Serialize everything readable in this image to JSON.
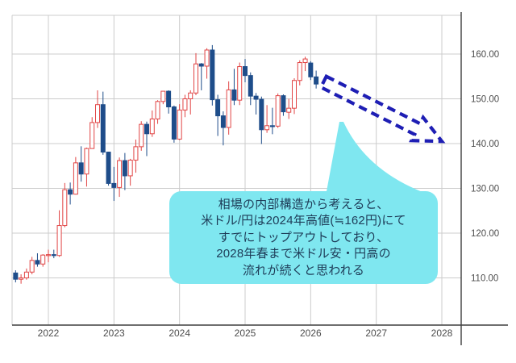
{
  "chart_data": {
    "type": "candlestick",
    "timeframe": "monthly",
    "x_axis": {
      "tick_labels": [
        "2022",
        "2023",
        "2024",
        "2025",
        "2026",
        "2027",
        "2028"
      ],
      "grid": true
    },
    "y_axis": {
      "tick_labels": [
        "160.00",
        "150.00",
        "140.00",
        "130.00",
        "120.00",
        "110.00"
      ],
      "side": "right",
      "grid": true
    },
    "candle_columns": [
      "month",
      "open",
      "high",
      "low",
      "close"
    ],
    "candles": [
      [
        "2021-07",
        111.1,
        111.7,
        109.0,
        109.7
      ],
      [
        "2021-08",
        109.7,
        110.8,
        108.7,
        110.0
      ],
      [
        "2021-09",
        110.0,
        112.1,
        109.6,
        111.3
      ],
      [
        "2021-10",
        111.3,
        114.7,
        110.8,
        113.9
      ],
      [
        "2021-11",
        113.9,
        115.5,
        112.5,
        113.1
      ],
      [
        "2021-12",
        113.1,
        115.3,
        112.5,
        115.1
      ],
      [
        "2022-01",
        115.1,
        116.3,
        113.5,
        115.2
      ],
      [
        "2022-02",
        115.2,
        116.3,
        114.4,
        115.0
      ],
      [
        "2022-03",
        115.0,
        125.1,
        114.7,
        121.7
      ],
      [
        "2022-04",
        121.7,
        131.2,
        121.3,
        129.7
      ],
      [
        "2022-05",
        129.7,
        131.3,
        126.4,
        128.7
      ],
      [
        "2022-06",
        128.7,
        137.0,
        128.6,
        135.7
      ],
      [
        "2022-07",
        135.7,
        139.4,
        131.5,
        133.2
      ],
      [
        "2022-08",
        133.2,
        139.1,
        130.4,
        138.9
      ],
      [
        "2022-09",
        138.9,
        145.9,
        138.9,
        144.7
      ],
      [
        "2022-10",
        144.7,
        151.9,
        143.5,
        148.7
      ],
      [
        "2022-11",
        148.7,
        151.6,
        137.5,
        138.1
      ],
      [
        "2022-12",
        138.1,
        138.2,
        130.6,
        131.1
      ],
      [
        "2023-01",
        131.1,
        134.8,
        127.2,
        130.2
      ],
      [
        "2023-02",
        130.2,
        136.9,
        128.1,
        136.2
      ],
      [
        "2023-03",
        136.2,
        137.9,
        129.6,
        132.8
      ],
      [
        "2023-04",
        132.8,
        136.6,
        130.6,
        136.3
      ],
      [
        "2023-05",
        136.3,
        140.9,
        133.5,
        139.3
      ],
      [
        "2023-06",
        139.3,
        145.0,
        138.4,
        144.3
      ],
      [
        "2023-07",
        144.3,
        144.9,
        137.2,
        142.2
      ],
      [
        "2023-08",
        142.2,
        147.4,
        141.5,
        145.5
      ],
      [
        "2023-09",
        145.5,
        149.7,
        144.4,
        149.4
      ],
      [
        "2023-10",
        149.4,
        151.7,
        148.8,
        151.7
      ],
      [
        "2023-11",
        151.7,
        151.9,
        146.7,
        148.2
      ],
      [
        "2023-12",
        148.2,
        148.5,
        140.2,
        141.0
      ],
      [
        "2024-01",
        141.0,
        148.8,
        140.8,
        147.5
      ],
      [
        "2024-02",
        147.5,
        150.9,
        145.9,
        150.0
      ],
      [
        "2024-03",
        150.0,
        151.9,
        146.5,
        151.3
      ],
      [
        "2024-04",
        151.3,
        160.2,
        150.8,
        157.8
      ],
      [
        "2024-05",
        157.8,
        158.0,
        151.9,
        157.3
      ],
      [
        "2024-06",
        157.3,
        161.3,
        154.5,
        160.9
      ],
      [
        "2024-07",
        160.9,
        162.0,
        148.5,
        149.8
      ],
      [
        "2024-08",
        149.8,
        150.9,
        141.7,
        146.2
      ],
      [
        "2024-09",
        146.2,
        147.2,
        139.6,
        143.6
      ],
      [
        "2024-10",
        143.6,
        153.9,
        142.0,
        152.0
      ],
      [
        "2024-11",
        152.0,
        156.7,
        148.6,
        149.7
      ],
      [
        "2024-12",
        149.7,
        158.1,
        148.6,
        157.2
      ],
      [
        "2025-01",
        157.2,
        158.9,
        153.7,
        155.2
      ],
      [
        "2025-02",
        155.2,
        155.9,
        148.6,
        150.6
      ],
      [
        "2025-03",
        150.6,
        151.3,
        146.5,
        149.9
      ],
      [
        "2025-04",
        149.9,
        150.5,
        139.9,
        143.1
      ],
      [
        "2025-05",
        143.1,
        148.6,
        142.4,
        144.0
      ],
      [
        "2025-06",
        144.0,
        148.0,
        142.1,
        143.9
      ],
      [
        "2025-07",
        143.9,
        151.2,
        143.5,
        150.7
      ],
      [
        "2025-08",
        150.7,
        151.0,
        146.2,
        147.1
      ],
      [
        "2025-09",
        147.0,
        150.0,
        145.5,
        147.9
      ],
      [
        "2025-10",
        147.9,
        154.6,
        146.6,
        154.1
      ],
      [
        "2025-11",
        154.1,
        158.6,
        153.0,
        158.1
      ],
      [
        "2025-12",
        158.1,
        159.4,
        156.2,
        158.9
      ],
      [
        "2026-01",
        158.0,
        158.4,
        154.2,
        154.9
      ],
      [
        "2026-02",
        154.9,
        156.3,
        152.3,
        153.3
      ]
    ],
    "forecast_arrow": {
      "style": "dashed-outline",
      "start": {
        "month": "2026-03",
        "price": 153.8
      },
      "end": {
        "month": "2028-01",
        "price": 140.5
      }
    },
    "annotation": {
      "lines": [
        "相場の内部構造から考えると、",
        "米ドル/円は2024年高値(≒162円)にて",
        "すでにトップアウトしており、",
        "2028年春まで米ドル安・円高の",
        "流れが続くと思われる"
      ]
    },
    "colors": {
      "up": "#e14444",
      "down": "#1e4d8a",
      "grid": "#cccccc",
      "axis": "#3f3f3f",
      "tick_text": "#4d4d4d",
      "arrow": "#1e1eb4",
      "bubble_fill": "#7fe7f0",
      "bubble_text": "#1e3c58",
      "background": "#ffffff"
    }
  }
}
